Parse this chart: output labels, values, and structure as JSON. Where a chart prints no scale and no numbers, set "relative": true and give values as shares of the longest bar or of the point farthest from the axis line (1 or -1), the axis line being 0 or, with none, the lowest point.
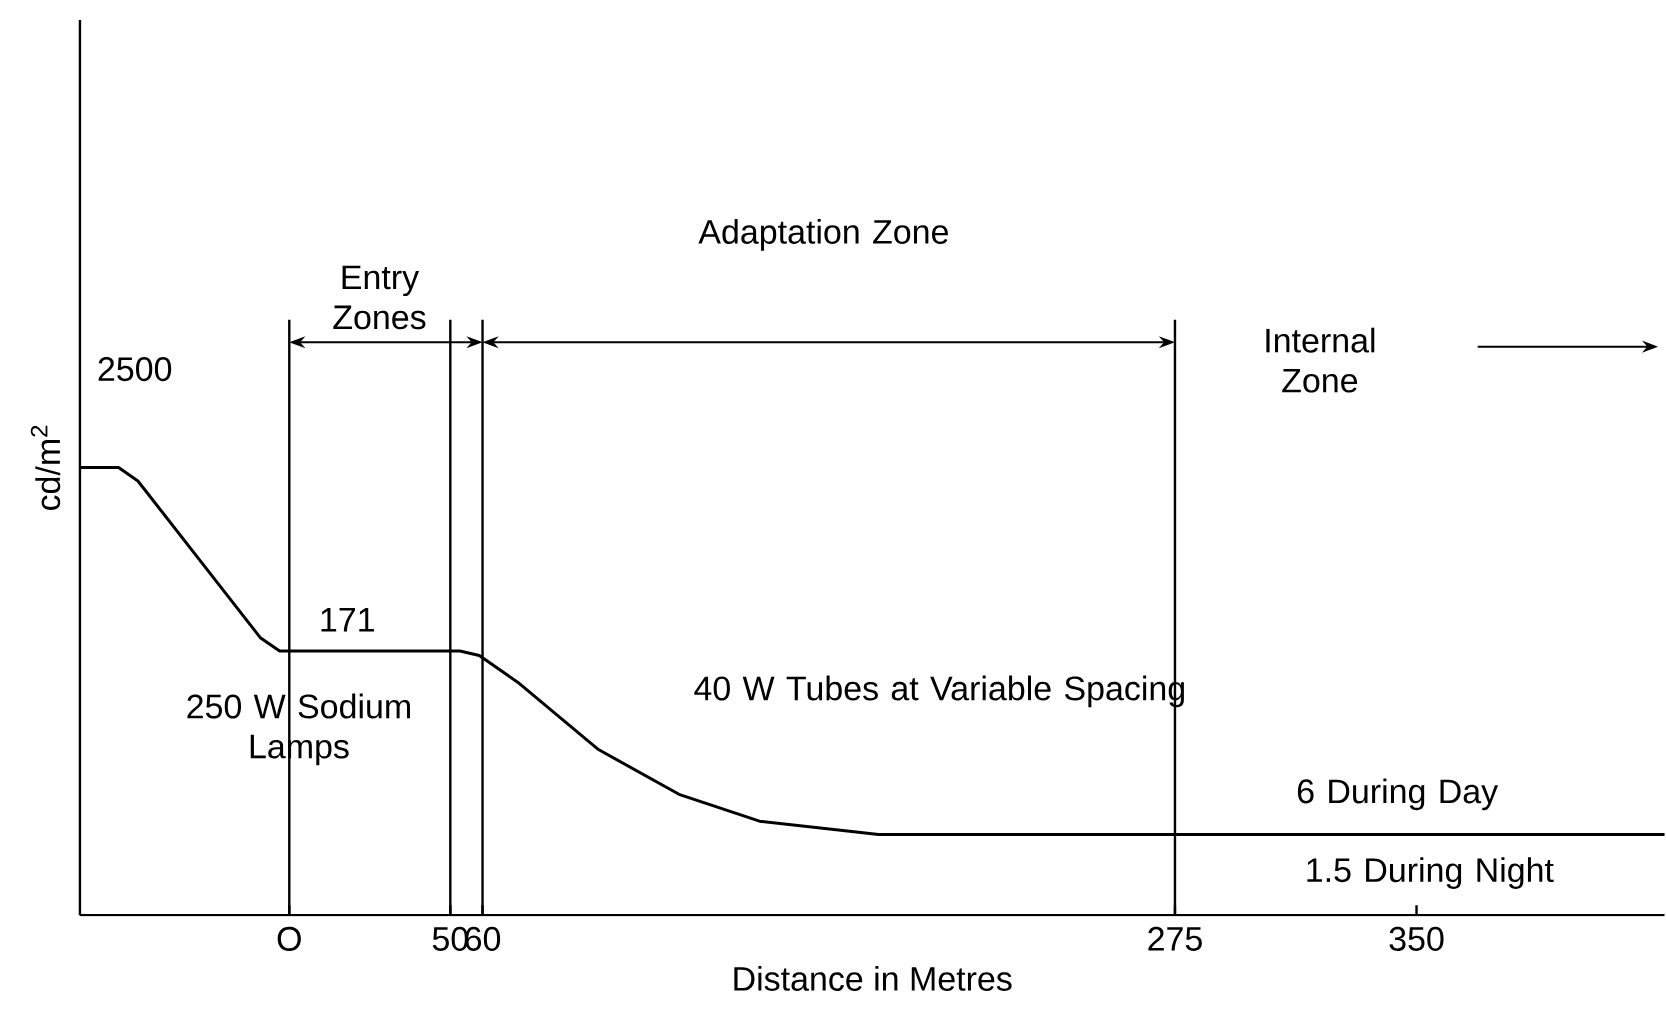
{
  "chart_data": {
    "type": "line",
    "relative": true,
    "xlabel": "Distance in Metres",
    "ylabel": "cd/m$^{2}$",
    "xlim": [
      -65,
      427
    ],
    "xticks": [
      {
        "value": 0,
        "label": "O"
      },
      50,
      60,
      275,
      350
    ],
    "series": [
      {
        "color": "#000000",
        "x": [
          -65,
          -53,
          -47,
          -9,
          -3,
          53,
          59,
          71,
          96,
          121,
          146,
          183,
          427
        ],
        "values": [
          1,
          1,
          0.97,
          0.62,
          0.59,
          0.59,
          0.58,
          0.52,
          0.37,
          0.27,
          0.21,
          0.18,
          0.18
        ]
      }
    ],
    "ref_lines": [
      {
        "axis": "x",
        "value": 0
      },
      {
        "axis": "x",
        "value": 50
      },
      {
        "axis": "x",
        "value": 60
      },
      {
        "axis": "x",
        "value": 275
      }
    ],
    "annotations": [
      "2500",
      "171",
      "6 During Day",
      "1.5 During Night",
      "250 W Sodium Lamps",
      "40 W Tubes at Variable Spacing",
      "Entry Zones",
      "Adaptation Zone",
      "Internal Zone"
    ]
  }
}
